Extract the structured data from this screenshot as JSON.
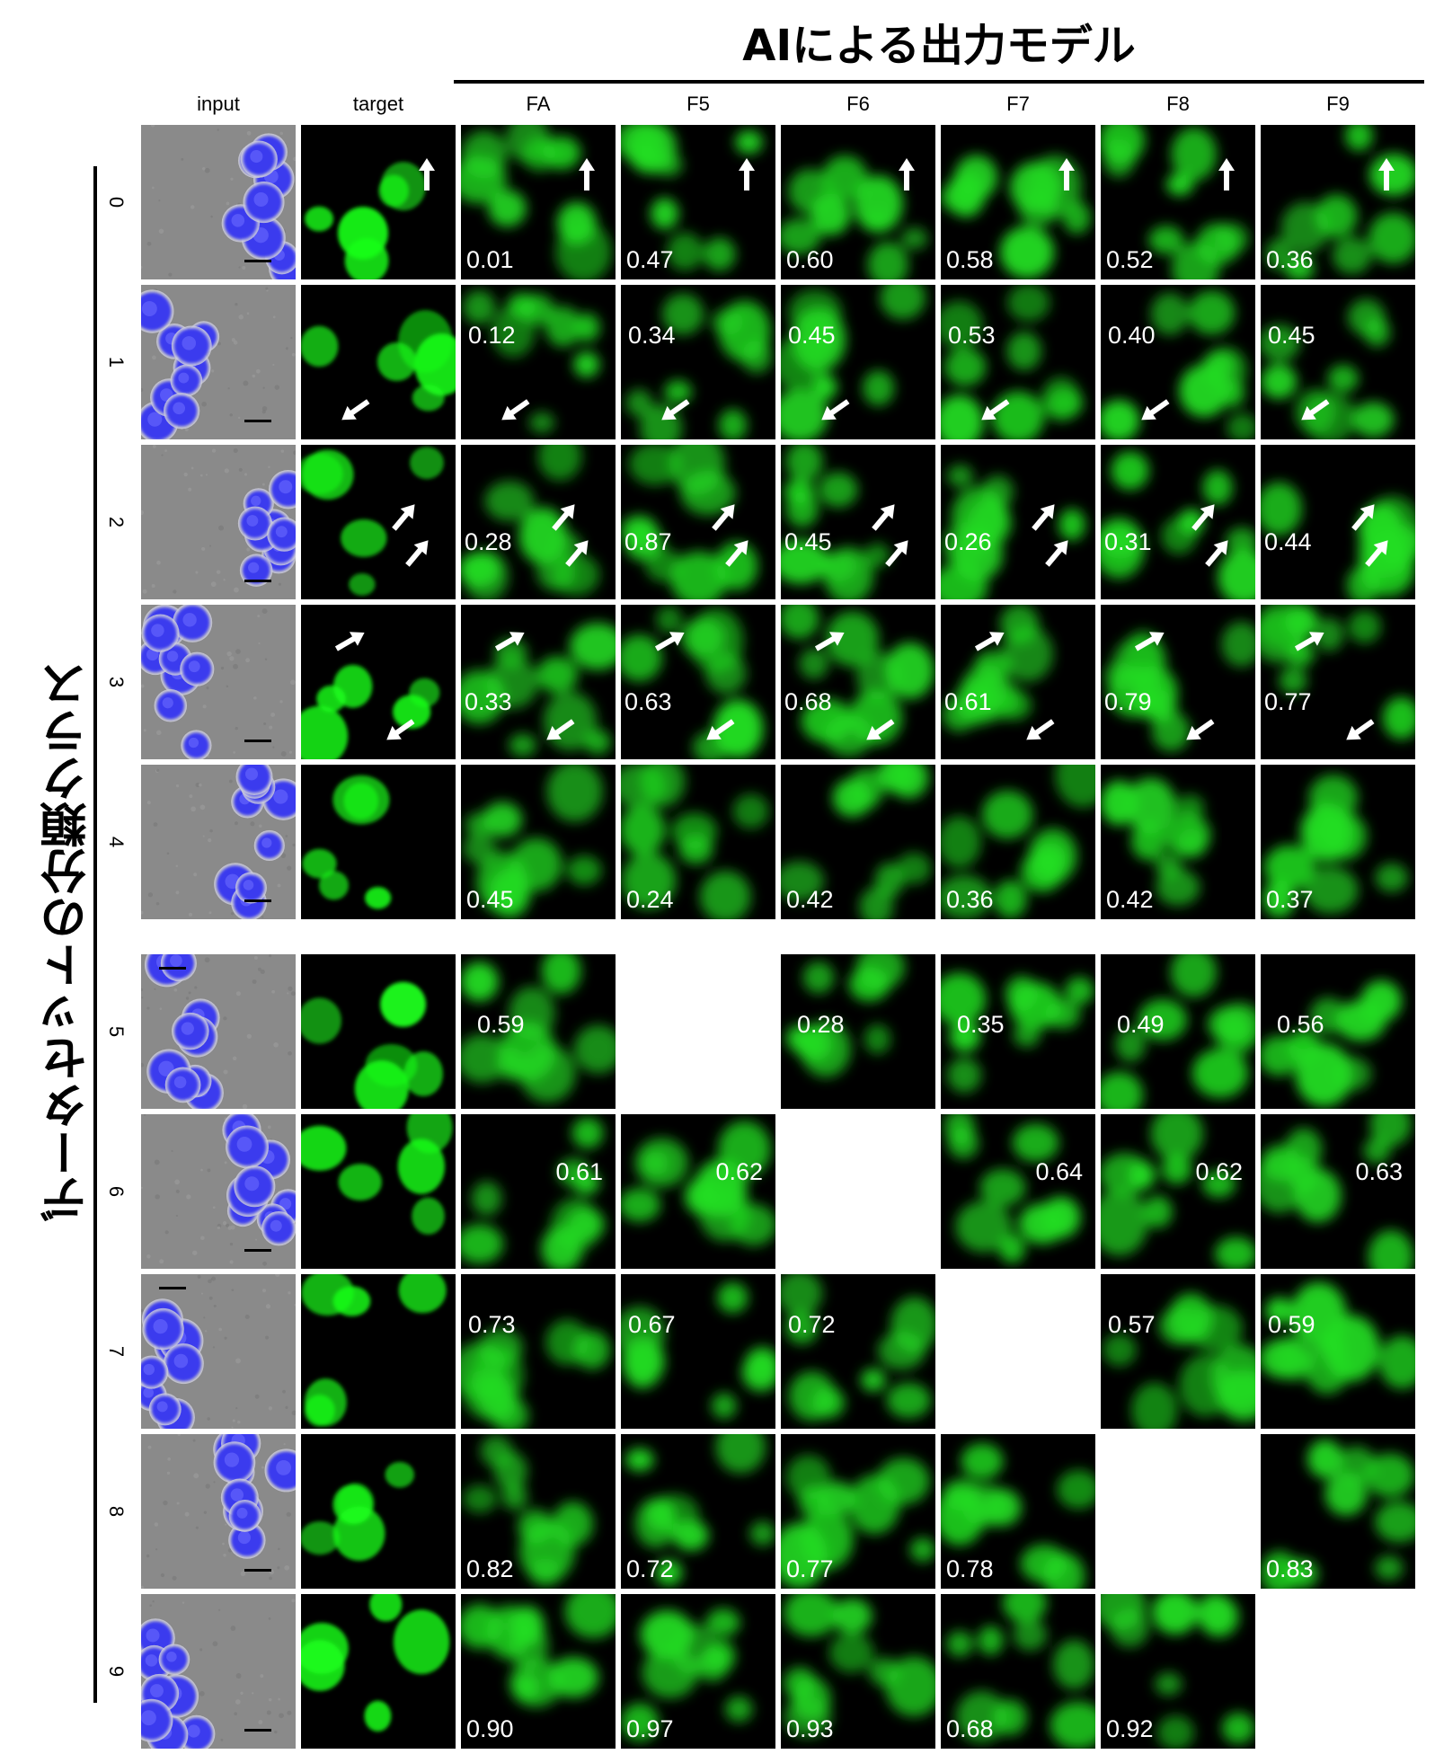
{
  "figure": {
    "top_title": "AIによる出力モデル",
    "side_title": "データセットの分類クラス",
    "columns": [
      "input",
      "target",
      "FA",
      "F5",
      "F6",
      "F7",
      "F8",
      "F9"
    ],
    "rows": [
      {
        "label": "0",
        "values": {
          "FA": "0.01",
          "F5": "0.47",
          "F6": "0.60",
          "F7": "0.58",
          "F8": "0.52",
          "F9": "0.36"
        },
        "value_pos": "bottom-left",
        "arrows": "up"
      },
      {
        "label": "1",
        "values": {
          "FA": "0.12",
          "F5": "0.34",
          "F6": "0.45",
          "F7": "0.53",
          "F8": "0.40",
          "F9": "0.45"
        },
        "value_pos": "top-left",
        "arrows": "one"
      },
      {
        "label": "2",
        "values": {
          "FA": "0.28",
          "F5": "0.87",
          "F6": "0.45",
          "F7": "0.26",
          "F8": "0.31",
          "F9": "0.44"
        },
        "value_pos": "mid-left",
        "arrows": "two-up"
      },
      {
        "label": "3",
        "values": {
          "FA": "0.33",
          "F5": "0.63",
          "F6": "0.68",
          "F7": "0.61",
          "F8": "0.79",
          "F9": "0.77"
        },
        "value_pos": "mid-left",
        "arrows": "two-pair"
      },
      {
        "label": "4",
        "values": {
          "FA": "0.45",
          "F5": "0.24",
          "F6": "0.42",
          "F7": "0.36",
          "F8": "0.42",
          "F9": "0.37"
        },
        "value_pos": "bottom-left",
        "arrows": "none"
      },
      {
        "label": "5",
        "values": {
          "FA": "0.59",
          "F6": "0.28",
          "F7": "0.35",
          "F8": "0.49",
          "F9": "0.56"
        },
        "value_pos": "upper-left",
        "arrows": "none"
      },
      {
        "label": "6",
        "values": {
          "FA": "0.61",
          "F5": "0.62",
          "F7": "0.64",
          "F8": "0.62",
          "F9": "0.63"
        },
        "value_pos": "upper-right",
        "arrows": "none"
      },
      {
        "label": "7",
        "values": {
          "FA": "0.73",
          "F5": "0.67",
          "F6": "0.72",
          "F8": "0.57",
          "F9": "0.59"
        },
        "value_pos": "top-left",
        "arrows": "none"
      },
      {
        "label": "8",
        "values": {
          "FA": "0.82",
          "F5": "0.72",
          "F6": "0.77",
          "F7": "0.78",
          "F9": "0.83"
        },
        "value_pos": "bottom-left",
        "arrows": "none"
      },
      {
        "label": "9",
        "values": {
          "FA": "0.90",
          "F5": "0.97",
          "F6": "0.93",
          "F7": "0.68",
          "F8": "0.92"
        },
        "value_pos": "bottom-left",
        "arrows": "none"
      }
    ]
  }
}
